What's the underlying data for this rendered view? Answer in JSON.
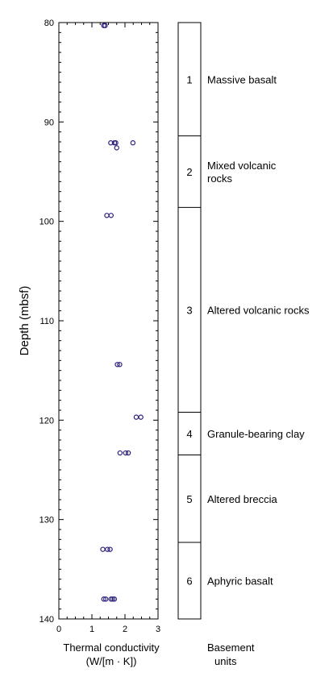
{
  "chart_data": {
    "type": "scatter",
    "xlabel_line1": "Thermal conductivity",
    "xlabel_line2": "(W/[m · K])",
    "ylabel": "Depth (mbsf)",
    "xlim": [
      0,
      3
    ],
    "ylim": [
      80,
      140
    ],
    "y_inverted": true,
    "xticks": [
      "0",
      "1",
      "2",
      "3"
    ],
    "yticks": [
      "80",
      "90",
      "100",
      "110",
      "120",
      "130",
      "140"
    ],
    "marker_color": "#2a1f7a",
    "points": [
      {
        "x": 1.36,
        "y": 80.3
      },
      {
        "x": 1.4,
        "y": 80.3
      },
      {
        "x": 1.57,
        "y": 92.1
      },
      {
        "x": 1.68,
        "y": 92.1
      },
      {
        "x": 1.72,
        "y": 92.1
      },
      {
        "x": 2.24,
        "y": 92.1
      },
      {
        "x": 1.75,
        "y": 92.6
      },
      {
        "x": 1.45,
        "y": 99.4
      },
      {
        "x": 1.58,
        "y": 99.4
      },
      {
        "x": 1.77,
        "y": 114.4
      },
      {
        "x": 1.84,
        "y": 114.4
      },
      {
        "x": 2.34,
        "y": 119.7
      },
      {
        "x": 2.48,
        "y": 119.7
      },
      {
        "x": 1.85,
        "y": 123.3
      },
      {
        "x": 2.02,
        "y": 123.3
      },
      {
        "x": 2.1,
        "y": 123.3
      },
      {
        "x": 1.33,
        "y": 133.0
      },
      {
        "x": 1.47,
        "y": 133.0
      },
      {
        "x": 1.55,
        "y": 133.0
      },
      {
        "x": 1.36,
        "y": 138.0
      },
      {
        "x": 1.42,
        "y": 138.0
      },
      {
        "x": 1.58,
        "y": 138.0
      },
      {
        "x": 1.63,
        "y": 138.0
      },
      {
        "x": 1.68,
        "y": 138.0
      }
    ]
  },
  "units_column": {
    "title_line1": "Basement",
    "title_line2": "units",
    "units": [
      {
        "number": "1",
        "name_lines": [
          "Massive basalt"
        ],
        "top": 80,
        "bottom": 91.4
      },
      {
        "number": "2",
        "name_lines": [
          "Mixed volcanic",
          "rocks"
        ],
        "top": 91.4,
        "bottom": 98.6
      },
      {
        "number": "3",
        "name_lines": [
          "Altered volcanic rocks"
        ],
        "top": 98.6,
        "bottom": 119.2
      },
      {
        "number": "4",
        "name_lines": [
          "Granule-bearing clay"
        ],
        "top": 119.2,
        "bottom": 123.5
      },
      {
        "number": "5",
        "name_lines": [
          "Altered breccia"
        ],
        "top": 123.5,
        "bottom": 132.3
      },
      {
        "number": "6",
        "name_lines": [
          "Aphyric basalt"
        ],
        "top": 132.3,
        "bottom": 140
      }
    ]
  }
}
